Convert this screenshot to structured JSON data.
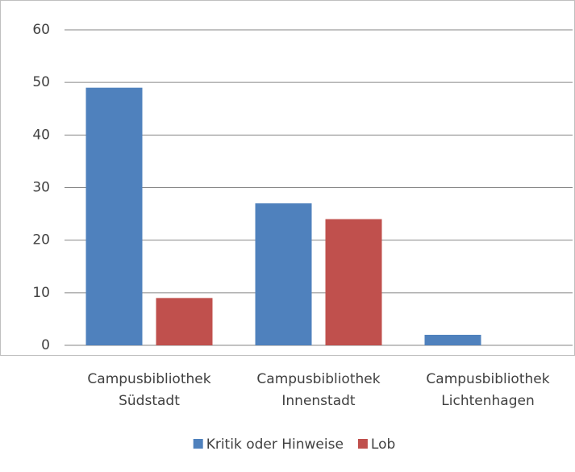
{
  "chart_data": {
    "type": "bar",
    "categories": [
      "Campusbibliothek Südstadt",
      "Campusbibliothek Innenstadt",
      "Campusbibliothek Lichtenhagen"
    ],
    "series": [
      {
        "name": "Kritik oder Hinweise",
        "color": "#4f81bd",
        "values": [
          49,
          27,
          2
        ]
      },
      {
        "name": "Lob",
        "color": "#c0504d",
        "values": [
          9,
          24,
          0
        ]
      }
    ],
    "ylim": [
      0,
      60
    ],
    "yticks": [
      0,
      10,
      20,
      30,
      40,
      50,
      60
    ],
    "grid": true,
    "legend": "bottom"
  }
}
